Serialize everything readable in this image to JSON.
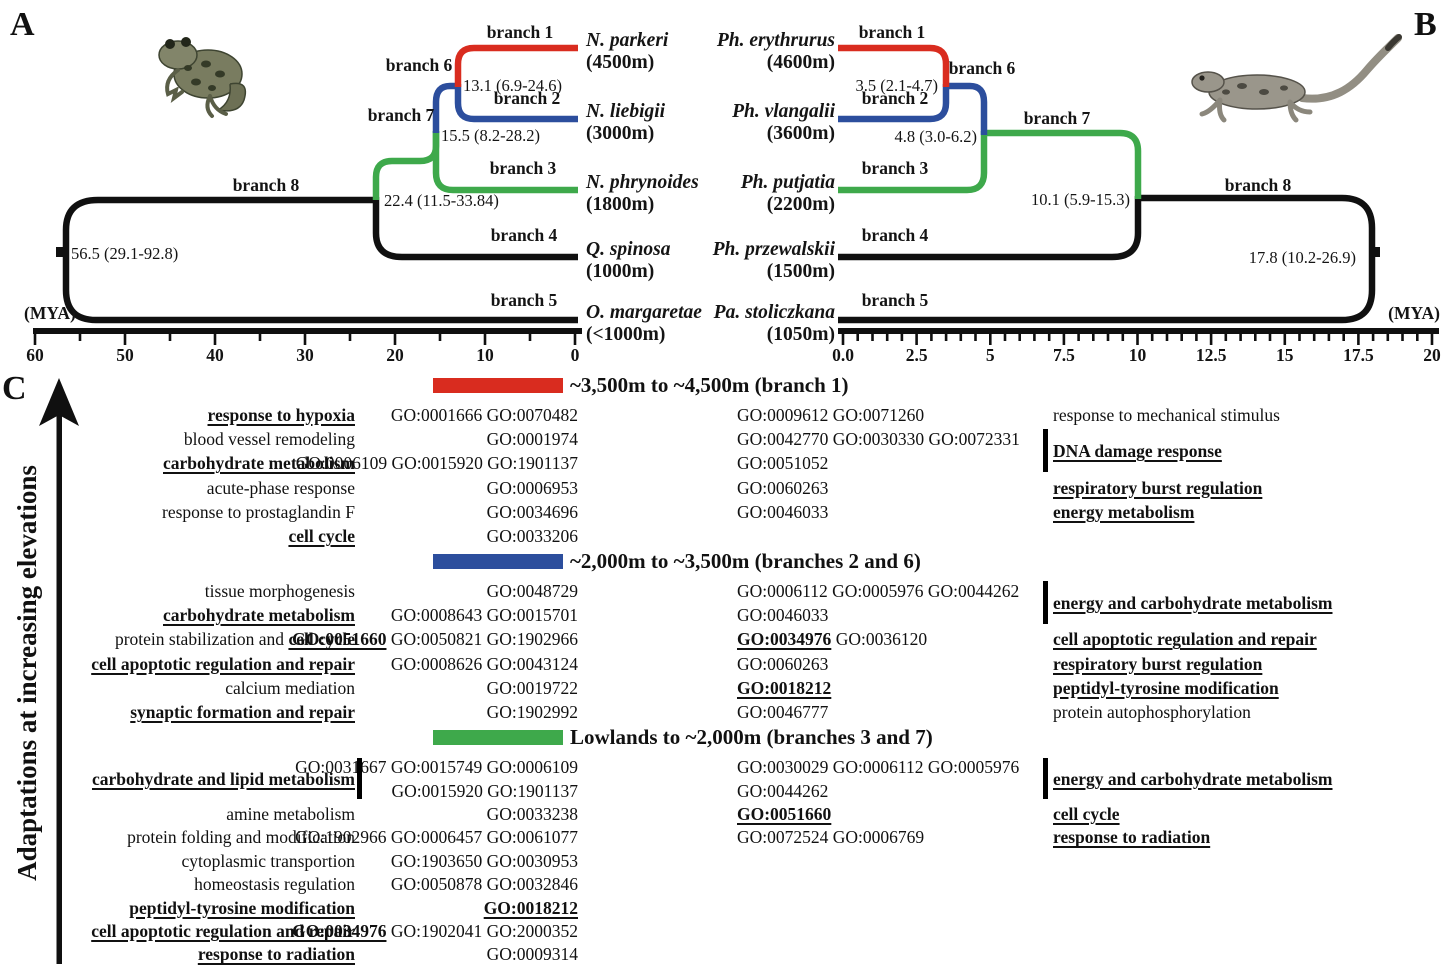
{
  "colors": {
    "red": "#d92c1f",
    "blue": "#2c4e9d",
    "green": "#3ea94b"
  },
  "panelA": {
    "label": "A",
    "species": [
      {
        "name": "N. parkeri",
        "elevation": "(4500m)"
      },
      {
        "name": "N. liebigii",
        "elevation": "(3000m)"
      },
      {
        "name": "N. phrynoides",
        "elevation": "(1800m)"
      },
      {
        "name": "Q. spinosa",
        "elevation": "(1000m)"
      },
      {
        "name": "O. margaretae",
        "elevation": "(<1000m)"
      }
    ],
    "branch_labels": [
      "branch 1",
      "branch 2",
      "branch 3",
      "branch 4",
      "branch 5",
      "branch 6",
      "branch 7",
      "branch 8"
    ],
    "node_ages": [
      "13.1 (6.9-24.6)",
      "15.5 (8.2-28.2)",
      "22.4 (11.5-33.84)",
      "56.5 (29.1-92.8)"
    ],
    "axis": {
      "unit": "(MYA)",
      "ticks": [
        "60",
        "50",
        "40",
        "30",
        "20",
        "10",
        "0"
      ]
    }
  },
  "panelB": {
    "label": "B",
    "species": [
      {
        "name": "Ph. erythrurus",
        "elevation": "(4600m)"
      },
      {
        "name": "Ph. vlangalii",
        "elevation": "(3600m)"
      },
      {
        "name": "Ph. putjatia",
        "elevation": "(2200m)"
      },
      {
        "name": "Ph. przewalskii",
        "elevation": "(1500m)"
      },
      {
        "name": "Pa. stoliczkana",
        "elevation": "(1050m)"
      }
    ],
    "branch_labels": [
      "branch 1",
      "branch 2",
      "branch 3",
      "branch 4",
      "branch 5",
      "branch 6",
      "branch 7",
      "branch 8"
    ],
    "node_ages": [
      "3.5 (2.1-4.7)",
      "4.8 (3.0-6.2)",
      "10.1 (5.9-15.3)",
      "17.8 (10.2-26.9)"
    ],
    "axis": {
      "unit": "(MYA)",
      "ticks": [
        "0.0",
        "2.5",
        "5",
        "7.5",
        "10",
        "12.5",
        "15",
        "17.5",
        "20"
      ]
    }
  },
  "panelC": {
    "label": "C",
    "axis_label": "Adaptations at increasing elevations",
    "blocks": [
      {
        "title": "~3,500m to ~4,500m (branch 1)",
        "color": "#d92c1f",
        "rows": [
          {
            "ll": [
              {
                "t": "response to hypoxia",
                "e": true
              }
            ],
            "il": [
              {
                "t": "GO:0001666"
              },
              {
                "t": "GO:0070482"
              }
            ],
            "ir": [
              {
                "t": "GO:0009612"
              },
              {
                "t": "GO:0071260"
              }
            ],
            "rl": [
              {
                "t": "response to mechanical stimulus"
              }
            ]
          },
          {
            "ll": [
              {
                "t": "blood vessel remodeling"
              }
            ],
            "il": [
              {
                "t": "GO:0001974"
              }
            ],
            "ir": [
              {
                "t": "GO:0042770"
              },
              {
                "t": "GO:0030330"
              },
              {
                "t": "GO:0072331"
              }
            ],
            "rl": [
              {
                "t": "DNA damage response",
                "e": true
              }
            ],
            "br": 2
          },
          {
            "ll": [
              {
                "t": "carbohydrate metabolism",
                "e": true
              }
            ],
            "il": [
              {
                "t": "GO:0006109"
              },
              {
                "t": "GO:0015920"
              },
              {
                "t": "GO:1901137"
              }
            ],
            "ir": [
              {
                "t": "GO:0051052"
              }
            ],
            "rl": []
          },
          {
            "ll": [
              {
                "t": "acute-phase response"
              }
            ],
            "il": [
              {
                "t": "GO:0006953"
              }
            ],
            "ir": [
              {
                "t": "GO:0060263"
              }
            ],
            "rl": [
              {
                "t": "respiratory burst regulation",
                "e": true
              }
            ]
          },
          {
            "ll": [
              {
                "t": "response to prostaglandin F"
              }
            ],
            "il": [
              {
                "t": "GO:0034696"
              }
            ],
            "ir": [
              {
                "t": "GO:0046033"
              }
            ],
            "rl": [
              {
                "t": "energy metabolism",
                "e": true
              }
            ]
          },
          {
            "ll": [
              {
                "t": "cell cycle",
                "e": true
              }
            ],
            "il": [
              {
                "t": "GO:0033206"
              }
            ],
            "ir": [],
            "rl": []
          }
        ]
      },
      {
        "title": "~2,000m to ~3,500m (branches 2 and 6)",
        "color": "#2c4e9d",
        "rows": [
          {
            "ll": [
              {
                "t": "tissue morphogenesis"
              }
            ],
            "il": [
              {
                "t": "GO:0048729"
              }
            ],
            "ir": [
              {
                "t": "GO:0006112"
              },
              {
                "t": "GO:0005976"
              },
              {
                "t": "GO:0044262"
              }
            ],
            "rl": [
              {
                "t": "energy and carbohydrate metabolism",
                "e": true
              }
            ],
            "br": 2
          },
          {
            "ll": [
              {
                "t": "carbohydrate metabolism",
                "e": true
              }
            ],
            "il": [
              {
                "t": "GO:0008643"
              },
              {
                "t": "GO:0015701"
              }
            ],
            "ir": [
              {
                "t": "GO:0046033"
              }
            ],
            "rl": []
          },
          {
            "ll": [
              {
                "t": "protein stabilization and"
              },
              {
                "t": "cell cycle",
                "e": true
              }
            ],
            "il": [
              {
                "t": "GO:0051660",
                "e": true
              },
              {
                "t": "GO:0050821"
              },
              {
                "t": "GO:1902966"
              }
            ],
            "ir": [
              {
                "t": "GO:0034976",
                "e": true
              },
              {
                "t": "GO:0036120"
              }
            ],
            "rl": [
              {
                "t": "cell apoptotic regulation and repair",
                "e": true
              }
            ]
          },
          {
            "ll": [
              {
                "t": "cell apoptotic regulation and repair",
                "e": true
              }
            ],
            "il": [
              {
                "t": "GO:0008626"
              },
              {
                "t": "GO:0043124"
              }
            ],
            "ir": [
              {
                "t": "GO:0060263"
              }
            ],
            "rl": [
              {
                "t": "respiratory burst regulation",
                "e": true
              }
            ]
          },
          {
            "ll": [
              {
                "t": "calcium mediation"
              }
            ],
            "il": [
              {
                "t": "GO:0019722"
              }
            ],
            "ir": [
              {
                "t": "GO:0018212",
                "e": true
              }
            ],
            "rl": [
              {
                "t": "peptidyl-tyrosine modification",
                "e": true
              }
            ]
          },
          {
            "ll": [
              {
                "t": "synaptic formation and repair",
                "e": true
              }
            ],
            "il": [
              {
                "t": "GO:1902992"
              }
            ],
            "ir": [
              {
                "t": "GO:0046777"
              }
            ],
            "rl": [
              {
                "t": "protein autophosphorylation"
              }
            ]
          }
        ]
      },
      {
        "title": "Lowlands to ~2,000m (branches 3 and 7)",
        "color": "#3ea94b",
        "rows": [
          {
            "ll": [
              {
                "t": "carbohydrate and lipid metabolism",
                "e": true
              }
            ],
            "bl": 2,
            "il": [
              {
                "t": "GO:0031667"
              },
              {
                "t": "GO:0015749"
              },
              {
                "t": "GO:0006109"
              }
            ],
            "ir": [
              {
                "t": "GO:0030029"
              },
              {
                "t": "GO:0006112"
              },
              {
                "t": "GO:0005976"
              }
            ],
            "rl": [
              {
                "t": "energy and carbohydrate metabolism",
                "e": true
              }
            ],
            "br": 2
          },
          {
            "ll": [],
            "il": [
              {
                "t": "GO:0015920"
              },
              {
                "t": "GO:1901137"
              }
            ],
            "ir": [
              {
                "t": "GO:0044262"
              }
            ],
            "rl": []
          },
          {
            "ll": [
              {
                "t": "amine metabolism"
              }
            ],
            "il": [
              {
                "t": "GO:0033238"
              }
            ],
            "ir": [
              {
                "t": "GO:0051660",
                "e": true
              }
            ],
            "rl": [
              {
                "t": "cell cycle",
                "e": true
              }
            ]
          },
          {
            "ll": [
              {
                "t": "protein folding and modification"
              }
            ],
            "il": [
              {
                "t": "GO:1902966"
              },
              {
                "t": "GO:0006457"
              },
              {
                "t": "GO:0061077"
              }
            ],
            "ir": [
              {
                "t": "GO:0072524"
              },
              {
                "t": "GO:0006769"
              }
            ],
            "rl": [
              {
                "t": "response to radiation",
                "e": true
              }
            ]
          },
          {
            "ll": [
              {
                "t": "cytoplasmic transportion"
              }
            ],
            "il": [
              {
                "t": "GO:1903650"
              },
              {
                "t": "GO:0030953"
              }
            ],
            "ir": [],
            "rl": []
          },
          {
            "ll": [
              {
                "t": "homeostasis regulation"
              }
            ],
            "il": [
              {
                "t": "GO:0050878"
              },
              {
                "t": "GO:0032846"
              }
            ],
            "ir": [],
            "rl": []
          },
          {
            "ll": [
              {
                "t": "peptidyl-tyrosine modification",
                "e": true
              }
            ],
            "il": [
              {
                "t": "GO:0018212",
                "e": true
              }
            ],
            "ir": [],
            "rl": []
          },
          {
            "ll": [
              {
                "t": "cell apoptotic regulation and repair",
                "e": true
              }
            ],
            "il": [
              {
                "t": "GO:0034976",
                "e": true
              },
              {
                "t": "GO:1902041"
              },
              {
                "t": "GO:2000352"
              }
            ],
            "ir": [],
            "rl": []
          },
          {
            "ll": [
              {
                "t": "response to radiation",
                "e": true
              }
            ],
            "il": [
              {
                "t": "GO:0009314"
              }
            ],
            "ir": [],
            "rl": []
          }
        ]
      }
    ]
  }
}
